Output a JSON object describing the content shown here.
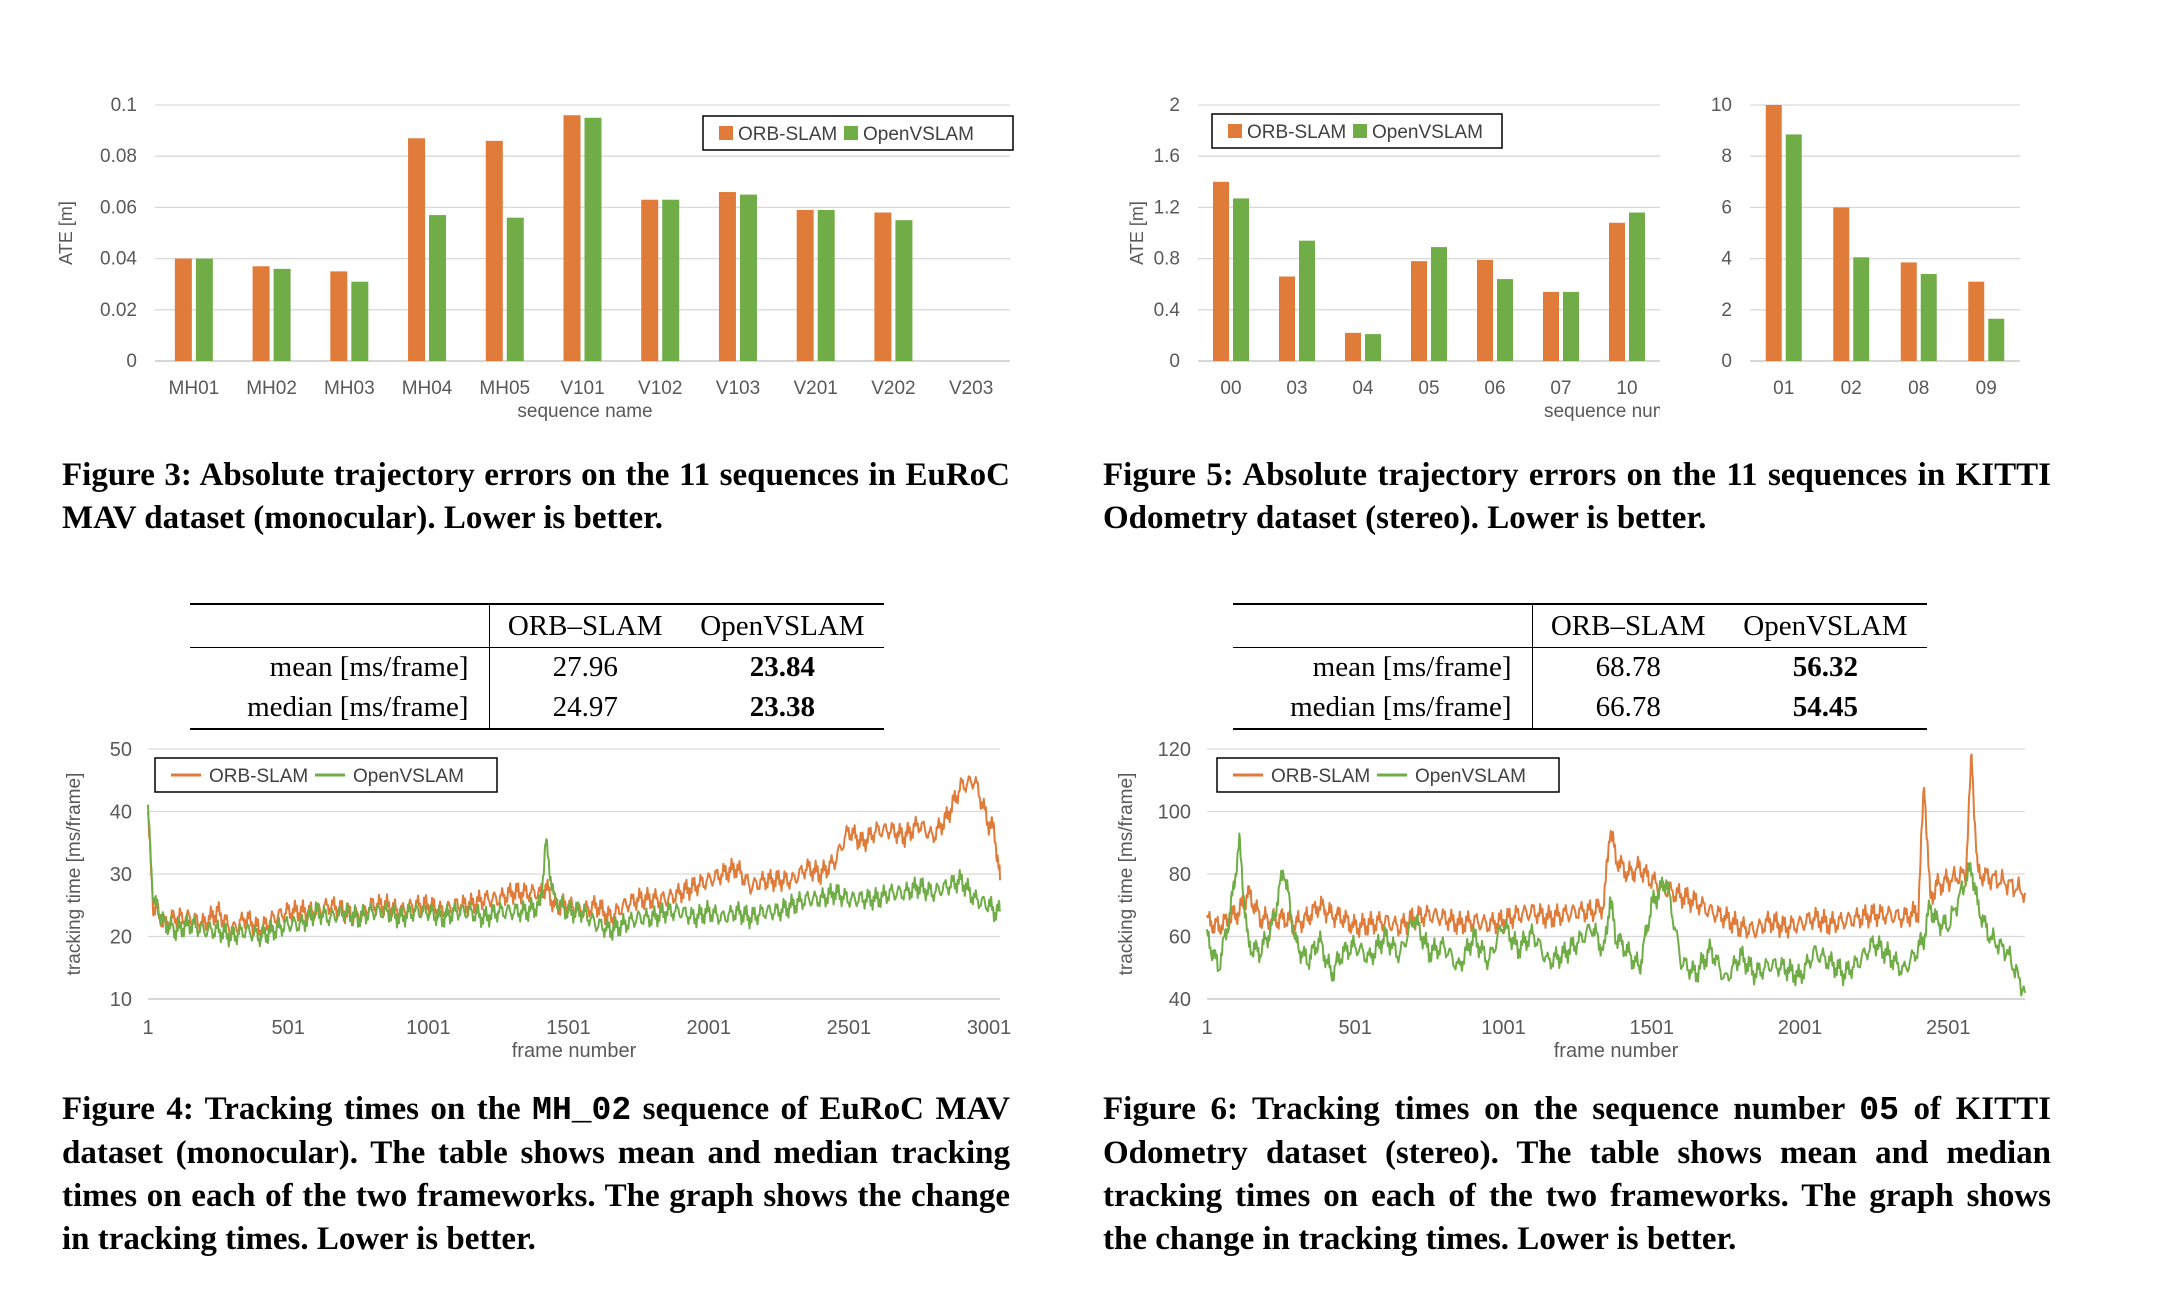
{
  "fig3": {
    "caption": "Figure 3: Absolute trajectory errors on the 11 sequences in EuRoC MAV dataset (monocular). Lower is better."
  },
  "fig5": {
    "caption": "Figure 5: Absolute trajectory errors on the 11 sequences in KITTI Odometry dataset (stereo). Lower is better."
  },
  "fig4": {
    "caption_pre": "Figure 4: Tracking times on the ",
    "caption_code": "MH_02",
    "caption_post": " sequence of EuRoC MAV dataset (monocular). The table shows mean and median tracking times on each of the two frameworks. The graph shows the change in tracking times. Lower is better.",
    "table": {
      "col1": "ORB–SLAM",
      "col2": "OpenVSLAM",
      "rows": [
        {
          "label": "mean [ms/frame]",
          "orb": "27.96",
          "open": "23.84"
        },
        {
          "label": "median [ms/frame]",
          "orb": "24.97",
          "open": "23.38"
        }
      ]
    }
  },
  "fig6": {
    "caption_pre": "Figure 6: Tracking times on the sequence number ",
    "caption_code": "05",
    "caption_post": " of KITTI Odometry dataset (stereo). The table shows mean and median tracking times on each of the two frameworks. The graph shows the change in tracking times. Lower is better.",
    "table": {
      "col1": "ORB–SLAM",
      "col2": "OpenVSLAM",
      "rows": [
        {
          "label": "mean [ms/frame]",
          "orb": "68.78",
          "open": "56.32"
        },
        {
          "label": "median [ms/frame]",
          "orb": "66.78",
          "open": "54.45"
        }
      ]
    }
  },
  "colors": {
    "orb": "#E07B39",
    "open": "#70AD47",
    "grid": "#D9D9D9",
    "axis": "#BFBFBF",
    "tick": "#595959"
  },
  "chart_data": [
    {
      "id": "fig3",
      "type": "bar",
      "title": "",
      "xlabel": "sequence name",
      "ylabel": "ATE [m]",
      "ylim": [
        0,
        0.1
      ],
      "yticks": [
        "0",
        "0.02",
        "0.04",
        "0.06",
        "0.08",
        "0.1"
      ],
      "categories": [
        "MH01",
        "MH02",
        "MH03",
        "MH04",
        "MH05",
        "V101",
        "V102",
        "V103",
        "V201",
        "V202",
        "V203"
      ],
      "series": [
        {
          "name": "ORB-SLAM",
          "values": [
            0.04,
            0.037,
            0.035,
            0.087,
            0.086,
            0.096,
            0.063,
            0.066,
            0.059,
            0.058,
            null
          ]
        },
        {
          "name": "OpenVSLAM",
          "values": [
            0.04,
            0.036,
            0.031,
            0.057,
            0.056,
            0.095,
            0.063,
            0.065,
            0.059,
            0.055,
            null
          ]
        }
      ],
      "legend": "top-right",
      "grid": true
    },
    {
      "id": "fig5a",
      "type": "bar",
      "title": "",
      "xlabel": "sequence number",
      "ylabel": "ATE [m]",
      "ylim": [
        0,
        2
      ],
      "yticks": [
        "0",
        "0.4",
        "0.8",
        "1.2",
        "1.6",
        "2"
      ],
      "categories": [
        "00",
        "03",
        "04",
        "05",
        "06",
        "07",
        "10"
      ],
      "series": [
        {
          "name": "ORB-SLAM",
          "values": [
            1.4,
            0.66,
            0.22,
            0.78,
            0.79,
            0.54,
            1.08
          ]
        },
        {
          "name": "OpenVSLAM",
          "values": [
            1.27,
            0.94,
            0.21,
            0.89,
            0.64,
            0.54,
            1.16
          ]
        }
      ],
      "legend": "top-left",
      "grid": true
    },
    {
      "id": "fig5b",
      "type": "bar",
      "title": "",
      "ylim": [
        0,
        10
      ],
      "yticks": [
        "0",
        "2",
        "4",
        "6",
        "8",
        "10"
      ],
      "categories": [
        "01",
        "02",
        "08",
        "09"
      ],
      "series": [
        {
          "name": "ORB-SLAM",
          "values": [
            10.0,
            6.0,
            3.85,
            3.1
          ]
        },
        {
          "name": "OpenVSLAM",
          "values": [
            8.85,
            4.05,
            3.4,
            1.65
          ]
        }
      ],
      "grid": true
    },
    {
      "id": "fig4",
      "type": "line",
      "title": "",
      "xlabel": "frame number",
      "ylabel": "tracking time [ms/frame]",
      "xlim": [
        1,
        3040
      ],
      "ylim": [
        10,
        50
      ],
      "xticks": [
        "1",
        "501",
        "1001",
        "1501",
        "2001",
        "2501",
        "3001"
      ],
      "yticks": [
        "10",
        "20",
        "30",
        "40",
        "50"
      ],
      "x": [
        1,
        20,
        60,
        100,
        150,
        200,
        250,
        300,
        350,
        400,
        450,
        500,
        550,
        600,
        650,
        700,
        750,
        800,
        850,
        900,
        950,
        1000,
        1050,
        1100,
        1150,
        1200,
        1250,
        1300,
        1350,
        1400,
        1420,
        1450,
        1500,
        1550,
        1600,
        1650,
        1700,
        1750,
        1800,
        1850,
        1900,
        1950,
        2000,
        2050,
        2100,
        2150,
        2200,
        2250,
        2300,
        2350,
        2400,
        2450,
        2500,
        2550,
        2600,
        2650,
        2700,
        2750,
        2800,
        2850,
        2900,
        2950,
        3000,
        3020,
        3040
      ],
      "series": [
        {
          "name": "ORB-SLAM",
          "values": [
            39,
            25,
            22,
            23,
            23,
            22,
            24,
            21,
            23,
            21,
            23,
            24,
            24,
            24,
            25,
            24,
            23,
            25,
            25,
            24,
            25,
            25,
            24,
            25,
            25,
            26,
            26,
            27,
            27,
            27,
            28,
            25,
            25,
            24,
            25,
            23,
            25,
            26,
            26,
            26,
            27,
            28,
            29,
            30,
            31,
            28,
            29,
            29,
            29,
            31,
            30,
            32,
            37,
            35,
            37,
            37,
            36,
            38,
            36,
            39,
            44,
            45,
            38,
            37,
            29
          ]
        },
        {
          "name": "OpenVSLAM",
          "values": [
            40,
            26,
            22,
            21,
            22,
            21,
            21,
            20,
            21,
            20,
            21,
            22,
            22,
            24,
            23,
            24,
            23,
            24,
            24,
            23,
            24,
            24,
            23,
            24,
            24,
            23,
            24,
            24,
            24,
            25,
            35,
            26,
            24,
            24,
            22,
            21,
            22,
            23,
            23,
            24,
            24,
            23,
            24,
            23,
            24,
            23,
            24,
            24,
            25,
            26,
            26,
            27,
            26,
            26,
            26,
            27,
            27,
            28,
            27,
            28,
            29,
            26,
            25,
            24,
            24
          ]
        }
      ],
      "legend": "top-left",
      "grid": true
    },
    {
      "id": "fig6",
      "type": "line",
      "title": "",
      "xlabel": "frame number",
      "ylabel": "tracking time [ms/frame]",
      "xlim": [
        1,
        2760
      ],
      "ylim": [
        40,
        120
      ],
      "xticks": [
        "1",
        "501",
        "1001",
        "1501",
        "2001",
        "2501"
      ],
      "yticks": [
        "40",
        "60",
        "80",
        "100",
        "120"
      ],
      "x": [
        1,
        40,
        80,
        110,
        140,
        180,
        220,
        260,
        300,
        340,
        380,
        420,
        460,
        500,
        550,
        600,
        650,
        700,
        750,
        800,
        850,
        900,
        950,
        1000,
        1050,
        1100,
        1150,
        1200,
        1250,
        1300,
        1340,
        1360,
        1380,
        1420,
        1460,
        1500,
        1550,
        1600,
        1650,
        1700,
        1750,
        1800,
        1850,
        1900,
        1950,
        2000,
        2050,
        2100,
        2150,
        2200,
        2250,
        2300,
        2350,
        2400,
        2420,
        2440,
        2460,
        2500,
        2560,
        2580,
        2600,
        2640,
        2700,
        2760
      ],
      "series": [
        {
          "name": "ORB-SLAM",
          "values": [
            65,
            63,
            66,
            68,
            74,
            66,
            65,
            66,
            64,
            66,
            70,
            67,
            66,
            63,
            64,
            65,
            63,
            66,
            67,
            66,
            64,
            65,
            64,
            65,
            67,
            68,
            66,
            67,
            68,
            68,
            70,
            95,
            85,
            80,
            82,
            78,
            75,
            73,
            71,
            68,
            66,
            63,
            62,
            65,
            63,
            64,
            66,
            64,
            65,
            66,
            67,
            67,
            66,
            68,
            110,
            72,
            76,
            78,
            80,
            118,
            80,
            79,
            77,
            74
          ]
        },
        {
          "name": "OpenVSLAM",
          "values": [
            60,
            50,
            68,
            90,
            57,
            55,
            63,
            82,
            58,
            52,
            59,
            48,
            55,
            57,
            53,
            60,
            54,
            66,
            55,
            57,
            50,
            60,
            52,
            64,
            56,
            61,
            52,
            54,
            58,
            63,
            55,
            72,
            60,
            55,
            50,
            70,
            78,
            52,
            48,
            56,
            46,
            54,
            48,
            51,
            50,
            47,
            55,
            52,
            48,
            52,
            58,
            54,
            49,
            56,
            60,
            70,
            65,
            63,
            78,
            82,
            70,
            60,
            55,
            42
          ]
        }
      ],
      "legend": "top-left",
      "grid": true
    }
  ]
}
